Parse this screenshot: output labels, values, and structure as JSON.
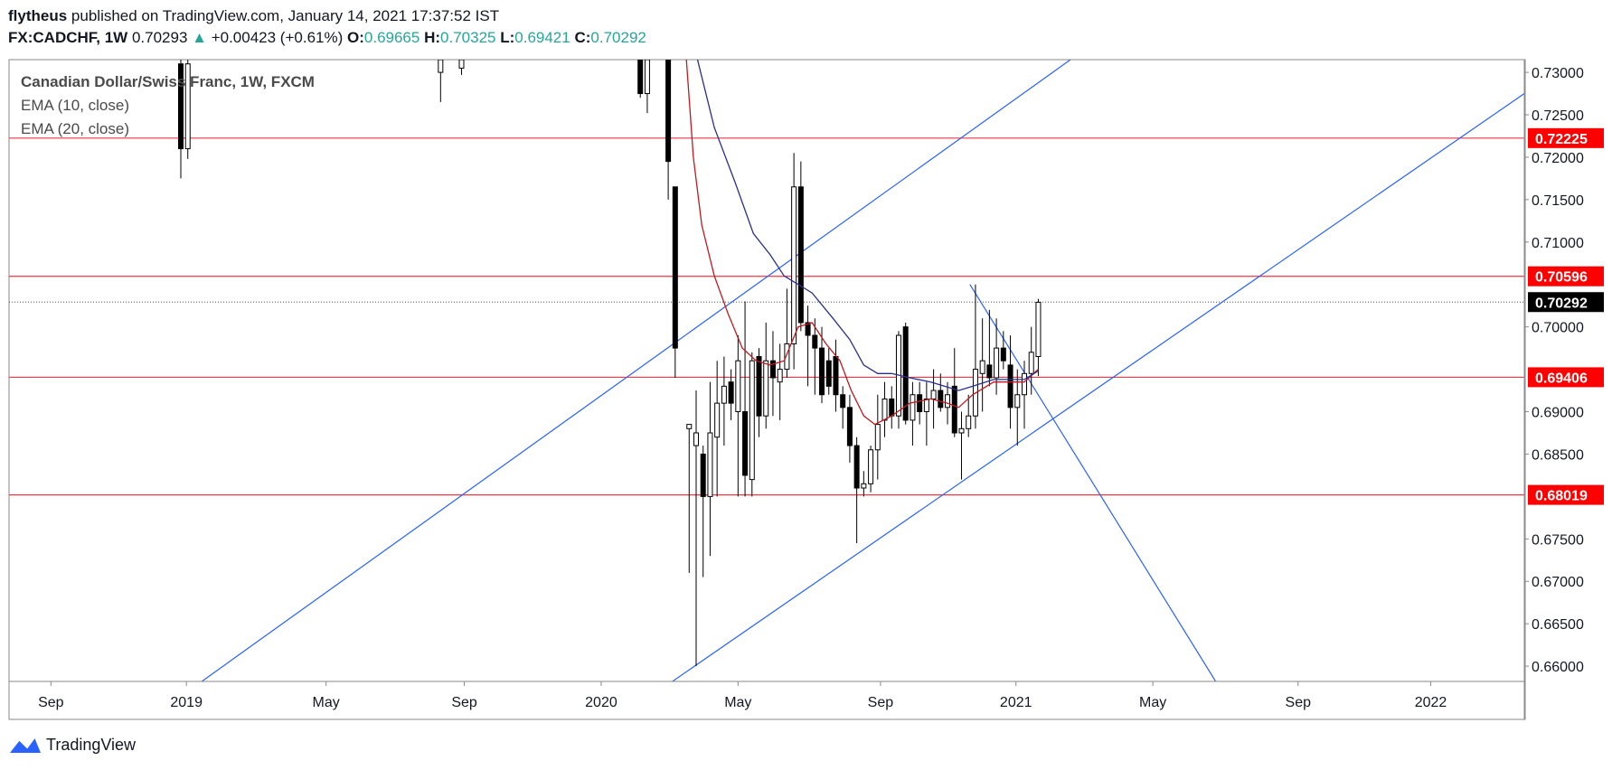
{
  "header": {
    "user": "flytheus",
    "published_text": "published on TradingView.com, January 14, 2021 17:37:52 IST",
    "symbol": "FX:CADCHF, 1W",
    "last": "0.70293",
    "change": "+0.00423 (+0.61%)",
    "o_label": "O:",
    "o_value": "0.69665",
    "h_label": "H:",
    "h_value": "0.70325",
    "l_label": "L:",
    "l_value": "0.69421",
    "c_label": "C:",
    "c_value": "0.70292"
  },
  "legend": {
    "title": "Canadian Dollar/Swiss Franc, 1W, FXCM",
    "ema1": "EMA (10, close)",
    "ema2": "EMA (20, close)"
  },
  "footer": {
    "brand": "TradingView"
  },
  "colors": {
    "ema10": "#c2191f",
    "ema20": "#2a2e8c",
    "hline": "#f23645",
    "trend": "#2962ff"
  },
  "chart_data": {
    "type": "candlestick",
    "title": "Canadian Dollar/Swiss Franc, 1W, FXCM",
    "ylim": [
      0.6582,
      0.7315
    ],
    "xlim": [
      0,
      1085
    ],
    "y_ticks": [
      "0.73000",
      "0.72500",
      "0.72000",
      "0.71500",
      "0.71000",
      "0.70000",
      "0.69000",
      "0.68500",
      "0.67500",
      "0.67000",
      "0.66500",
      "0.66000"
    ],
    "x_ticks": [
      {
        "label": "Sep",
        "x": 30
      },
      {
        "label": "2019",
        "x": 127
      },
      {
        "label": "May",
        "x": 227
      },
      {
        "label": "Sep",
        "x": 326
      },
      {
        "label": "2020",
        "x": 424
      },
      {
        "label": "May",
        "x": 522
      },
      {
        "label": "Sep",
        "x": 624
      },
      {
        "label": "2021",
        "x": 721
      },
      {
        "label": "May",
        "x": 819
      },
      {
        "label": "Sep",
        "x": 923
      },
      {
        "label": "2022",
        "x": 1018
      }
    ],
    "price_labels": [
      {
        "label": "0.72225",
        "price": 0.72225,
        "kind": "level"
      },
      {
        "label": "0.70596",
        "price": 0.70596,
        "kind": "level"
      },
      {
        "label": "0.70292",
        "price": 0.70292,
        "kind": "last"
      },
      {
        "label": "0.69406",
        "price": 0.69406,
        "kind": "level"
      },
      {
        "label": "0.68019",
        "price": 0.68019,
        "kind": "level"
      }
    ],
    "horizontal_lines": [
      0.72225,
      0.70596,
      0.69406,
      0.68019
    ],
    "last_price": 0.70292,
    "trend_lines": [
      {
        "x1": 138,
        "y1": 0.6582,
        "x2": 760,
        "y2": 0.7315
      },
      {
        "x1": 475,
        "y1": 0.6582,
        "x2": 1085,
        "y2": 0.7275
      },
      {
        "x1": 688,
        "y1": 0.705,
        "x2": 864,
        "y2": 0.6582
      }
    ],
    "candles": [
      {
        "x": 123,
        "o": 0.731,
        "h": 0.7315,
        "l": 0.7175,
        "c": 0.721
      },
      {
        "x": 128,
        "o": 0.721,
        "h": 0.7315,
        "l": 0.7198,
        "c": 0.731
      },
      {
        "x": 309,
        "o": 0.73,
        "h": 0.7315,
        "l": 0.7265,
        "c": 0.7315
      },
      {
        "x": 324,
        "o": 0.7305,
        "h": 0.7315,
        "l": 0.7297,
        "c": 0.7315
      },
      {
        "x": 452,
        "o": 0.7315,
        "h": 0.7315,
        "l": 0.727,
        "c": 0.7275
      },
      {
        "x": 457,
        "o": 0.7275,
        "h": 0.7315,
        "l": 0.7252,
        "c": 0.7315
      },
      {
        "x": 472,
        "o": 0.7315,
        "h": 0.7315,
        "l": 0.715,
        "c": 0.7195
      },
      {
        "x": 477,
        "o": 0.7165,
        "h": 0.7165,
        "l": 0.694,
        "c": 0.6975
      },
      {
        "x": 487,
        "o": 0.688,
        "h": 0.6885,
        "l": 0.671,
        "c": 0.6885
      },
      {
        "x": 492,
        "o": 0.686,
        "h": 0.6925,
        "l": 0.66,
        "c": 0.6875
      },
      {
        "x": 497,
        "o": 0.685,
        "h": 0.686,
        "l": 0.6705,
        "c": 0.68
      },
      {
        "x": 502,
        "o": 0.68,
        "h": 0.6935,
        "l": 0.673,
        "c": 0.6875
      },
      {
        "x": 507,
        "o": 0.687,
        "h": 0.696,
        "l": 0.68,
        "c": 0.691
      },
      {
        "x": 512,
        "o": 0.691,
        "h": 0.6965,
        "l": 0.686,
        "c": 0.693
      },
      {
        "x": 517,
        "o": 0.6935,
        "h": 0.695,
        "l": 0.689,
        "c": 0.691
      },
      {
        "x": 522,
        "o": 0.69,
        "h": 0.699,
        "l": 0.68,
        "c": 0.696
      },
      {
        "x": 527,
        "o": 0.69,
        "h": 0.703,
        "l": 0.68,
        "c": 0.6825
      },
      {
        "x": 532,
        "o": 0.682,
        "h": 0.697,
        "l": 0.68,
        "c": 0.696
      },
      {
        "x": 537,
        "o": 0.6965,
        "h": 0.6975,
        "l": 0.687,
        "c": 0.6895
      },
      {
        "x": 542,
        "o": 0.6895,
        "h": 0.7005,
        "l": 0.688,
        "c": 0.696
      },
      {
        "x": 547,
        "o": 0.696,
        "h": 0.6995,
        "l": 0.6895,
        "c": 0.694
      },
      {
        "x": 552,
        "o": 0.6935,
        "h": 0.698,
        "l": 0.689,
        "c": 0.695
      },
      {
        "x": 557,
        "o": 0.695,
        "h": 0.7045,
        "l": 0.694,
        "c": 0.698
      },
      {
        "x": 562,
        "o": 0.698,
        "h": 0.7205,
        "l": 0.695,
        "c": 0.7165
      },
      {
        "x": 567,
        "o": 0.7165,
        "h": 0.7195,
        "l": 0.6995,
        "c": 0.7005
      },
      {
        "x": 572,
        "o": 0.7005,
        "h": 0.7025,
        "l": 0.693,
        "c": 0.699
      },
      {
        "x": 577,
        "o": 0.699,
        "h": 0.701,
        "l": 0.692,
        "c": 0.6975
      },
      {
        "x": 582,
        "o": 0.6975,
        "h": 0.7,
        "l": 0.691,
        "c": 0.692
      },
      {
        "x": 587,
        "o": 0.696,
        "h": 0.6975,
        "l": 0.692,
        "c": 0.693
      },
      {
        "x": 592,
        "o": 0.6965,
        "h": 0.6985,
        "l": 0.69,
        "c": 0.692
      },
      {
        "x": 597,
        "o": 0.692,
        "h": 0.693,
        "l": 0.688,
        "c": 0.6905
      },
      {
        "x": 602,
        "o": 0.6905,
        "h": 0.692,
        "l": 0.684,
        "c": 0.686
      },
      {
        "x": 607,
        "o": 0.686,
        "h": 0.687,
        "l": 0.6745,
        "c": 0.681
      },
      {
        "x": 612,
        "o": 0.681,
        "h": 0.683,
        "l": 0.68,
        "c": 0.6815
      },
      {
        "x": 617,
        "o": 0.6815,
        "h": 0.686,
        "l": 0.6805,
        "c": 0.6855
      },
      {
        "x": 622,
        "o": 0.6855,
        "h": 0.692,
        "l": 0.682,
        "c": 0.6885
      },
      {
        "x": 627,
        "o": 0.689,
        "h": 0.6935,
        "l": 0.687,
        "c": 0.6915
      },
      {
        "x": 632,
        "o": 0.6915,
        "h": 0.693,
        "l": 0.688,
        "c": 0.6895
      },
      {
        "x": 637,
        "o": 0.6895,
        "h": 0.6995,
        "l": 0.688,
        "c": 0.699
      },
      {
        "x": 642,
        "o": 0.7,
        "h": 0.7005,
        "l": 0.6885,
        "c": 0.689
      },
      {
        "x": 647,
        "o": 0.689,
        "h": 0.6935,
        "l": 0.686,
        "c": 0.692
      },
      {
        "x": 652,
        "o": 0.692,
        "h": 0.6935,
        "l": 0.6885,
        "c": 0.69
      },
      {
        "x": 657,
        "o": 0.69,
        "h": 0.6935,
        "l": 0.686,
        "c": 0.6915
      },
      {
        "x": 662,
        "o": 0.6915,
        "h": 0.695,
        "l": 0.688,
        "c": 0.6925
      },
      {
        "x": 667,
        "o": 0.6925,
        "h": 0.6945,
        "l": 0.69,
        "c": 0.6905
      },
      {
        "x": 672,
        "o": 0.6905,
        "h": 0.6935,
        "l": 0.6885,
        "c": 0.692
      },
      {
        "x": 677,
        "o": 0.693,
        "h": 0.6975,
        "l": 0.687,
        "c": 0.6875
      },
      {
        "x": 682,
        "o": 0.6875,
        "h": 0.69,
        "l": 0.682,
        "c": 0.688
      },
      {
        "x": 687,
        "o": 0.688,
        "h": 0.692,
        "l": 0.687,
        "c": 0.6895
      },
      {
        "x": 692,
        "o": 0.6895,
        "h": 0.705,
        "l": 0.688,
        "c": 0.695
      },
      {
        "x": 697,
        "o": 0.6945,
        "h": 0.701,
        "l": 0.69,
        "c": 0.696
      },
      {
        "x": 702,
        "o": 0.6955,
        "h": 0.702,
        "l": 0.693,
        "c": 0.694
      },
      {
        "x": 707,
        "o": 0.694,
        "h": 0.701,
        "l": 0.692,
        "c": 0.6975
      },
      {
        "x": 712,
        "o": 0.6975,
        "h": 0.6995,
        "l": 0.695,
        "c": 0.696
      },
      {
        "x": 717,
        "o": 0.6955,
        "h": 0.699,
        "l": 0.688,
        "c": 0.6905
      },
      {
        "x": 722,
        "o": 0.6905,
        "h": 0.695,
        "l": 0.686,
        "c": 0.692
      },
      {
        "x": 727,
        "o": 0.692,
        "h": 0.696,
        "l": 0.688,
        "c": 0.6945
      },
      {
        "x": 732,
        "o": 0.6945,
        "h": 0.7,
        "l": 0.692,
        "c": 0.697
      },
      {
        "x": 737,
        "o": 0.6965,
        "h": 0.7033,
        "l": 0.6942,
        "c": 0.7029
      }
    ],
    "series": [
      {
        "name": "EMA (10, close)",
        "points": [
          [
            485,
            0.7315
          ],
          [
            490,
            0.72
          ],
          [
            496,
            0.712
          ],
          [
            505,
            0.706
          ],
          [
            515,
            0.7015
          ],
          [
            525,
            0.6975
          ],
          [
            535,
            0.696
          ],
          [
            545,
            0.6955
          ],
          [
            555,
            0.696
          ],
          [
            565,
            0.7
          ],
          [
            575,
            0.7005
          ],
          [
            585,
            0.698
          ],
          [
            595,
            0.696
          ],
          [
            603,
            0.6925
          ],
          [
            612,
            0.6895
          ],
          [
            620,
            0.6885
          ],
          [
            632,
            0.6895
          ],
          [
            645,
            0.691
          ],
          [
            660,
            0.6915
          ],
          [
            672,
            0.691
          ],
          [
            680,
            0.6905
          ],
          [
            690,
            0.692
          ],
          [
            705,
            0.6935
          ],
          [
            718,
            0.6935
          ],
          [
            727,
            0.6935
          ],
          [
            737,
            0.695
          ]
        ]
      },
      {
        "name": "EMA (20, close)",
        "points": [
          [
            493,
            0.7315
          ],
          [
            505,
            0.7235
          ],
          [
            520,
            0.717
          ],
          [
            533,
            0.711
          ],
          [
            545,
            0.7085
          ],
          [
            555,
            0.706
          ],
          [
            565,
            0.705
          ],
          [
            575,
            0.704
          ],
          [
            590,
            0.701
          ],
          [
            602,
            0.6985
          ],
          [
            612,
            0.6955
          ],
          [
            622,
            0.6945
          ],
          [
            632,
            0.6945
          ],
          [
            645,
            0.694
          ],
          [
            660,
            0.6935
          ],
          [
            670,
            0.693
          ],
          [
            680,
            0.6925
          ],
          [
            690,
            0.693
          ],
          [
            705,
            0.6938
          ],
          [
            718,
            0.6938
          ],
          [
            727,
            0.6938
          ],
          [
            737,
            0.6948
          ]
        ]
      }
    ]
  }
}
